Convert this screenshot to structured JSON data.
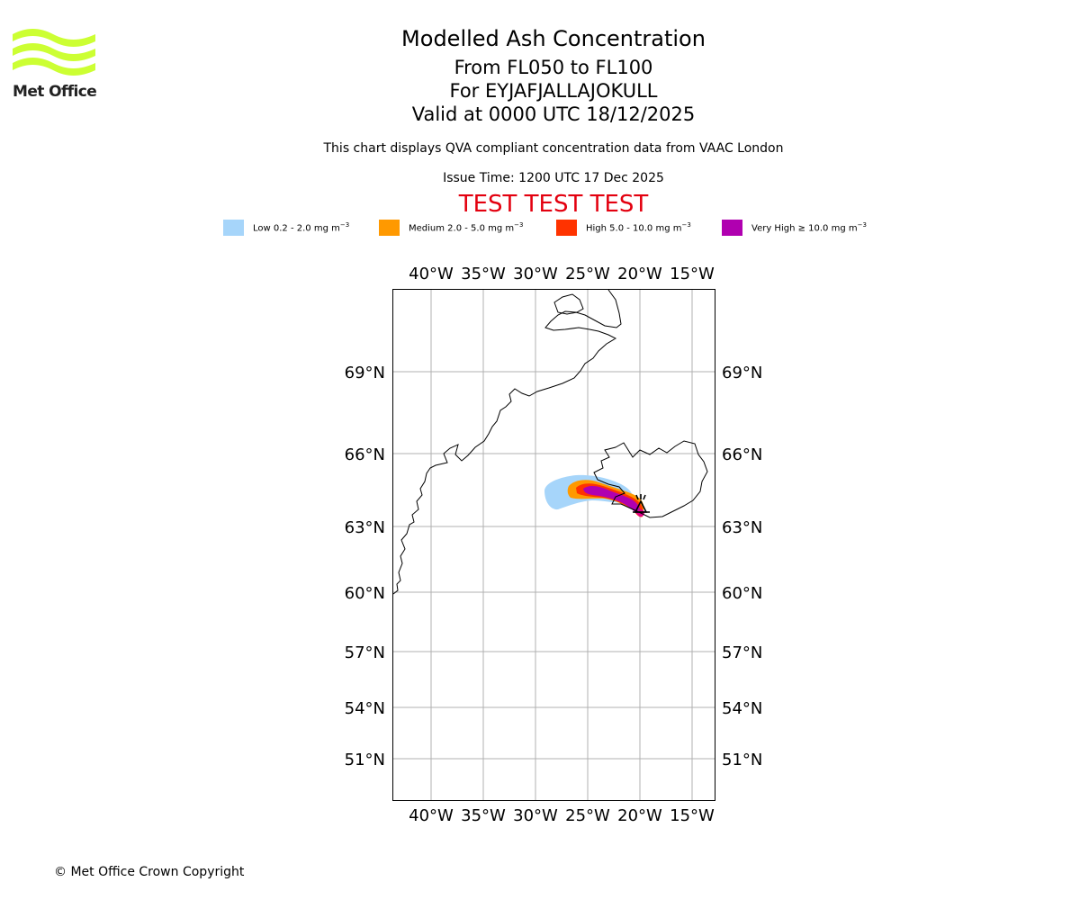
{
  "logo": {
    "brand": "Met Office",
    "color": "#ccff33"
  },
  "header": {
    "title": "Modelled Ash Concentration",
    "flight_levels": "From FL050 to FL100",
    "volcano": "For EYJAFJALLAJOKULL",
    "valid_time": "Valid at 0000 UTC 18/12/2025",
    "description": "This chart displays QVA compliant concentration data from VAAC London",
    "issue_time": "Issue Time: 1200 UTC 17 Dec 2025",
    "test_banner": "TEST TEST TEST",
    "test_color": "#e3000f"
  },
  "legend": [
    {
      "label": "Low 0.2 - 2.0 mg m",
      "unit_exp": "−3",
      "color": "#a6d5fa"
    },
    {
      "label": "Medium 2.0 - 5.0 mg m",
      "unit_exp": "−3",
      "color": "#ff9900"
    },
    {
      "label": "High 5.0 - 10.0 mg m",
      "unit_exp": "−3",
      "color": "#ff3300"
    },
    {
      "label": "Very High  ≥  10.0 mg m",
      "unit_exp": "−3",
      "color": "#b000b0"
    }
  ],
  "map": {
    "lon_labels": [
      "40°W",
      "35°W",
      "30°W",
      "25°W",
      "20°W",
      "15°W"
    ],
    "lat_labels": [
      "69°N",
      "66°N",
      "63°N",
      "60°N",
      "57°N",
      "54°N",
      "51°N"
    ],
    "volcano_marker": "volcano-symbol"
  },
  "footer": {
    "copyright": "© Met Office Crown Copyright"
  }
}
